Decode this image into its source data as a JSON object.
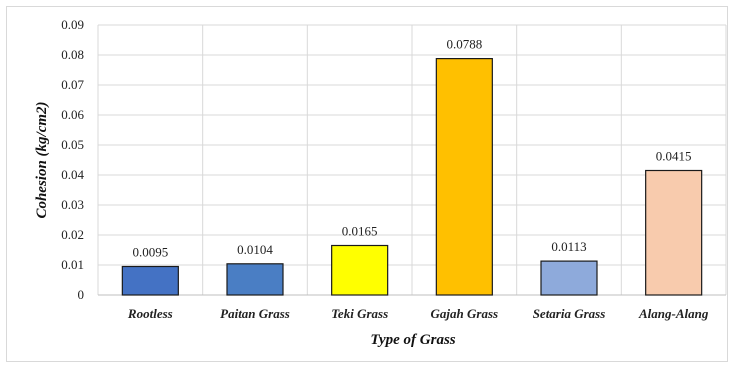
{
  "chart_data": {
    "type": "bar",
    "title": "",
    "xlabel": "Type of Grass",
    "ylabel": "Cohesion  (kg/cm2)",
    "categories": [
      "Rootless",
      "Paitan Grass",
      "Teki Grass",
      "Gajah Grass",
      "Setaria Grass",
      "Alang-Alang"
    ],
    "values": [
      0.0095,
      0.0104,
      0.0165,
      0.0788,
      0.0113,
      0.0415
    ],
    "data_labels": [
      "0.0095",
      "0.0104",
      "0.0165",
      "0.0788",
      "0.0113",
      "0.0415"
    ],
    "bar_colors": [
      "#4472c4",
      "#4a7ec4",
      "#ffff00",
      "#ffc000",
      "#8eaadb",
      "#f8cbad"
    ],
    "ylim": [
      0,
      0.09
    ],
    "yticks": [
      0,
      0.01,
      0.02,
      0.03,
      0.04,
      0.05,
      0.06,
      0.07,
      0.08,
      0.09
    ],
    "ytick_labels": [
      "0",
      "0.01",
      "0.02",
      "0.03",
      "0.04",
      "0.05",
      "0.06",
      "0.07",
      "0.08",
      "0.09"
    ],
    "grid": "horizontal and vertical",
    "legend": "none"
  }
}
